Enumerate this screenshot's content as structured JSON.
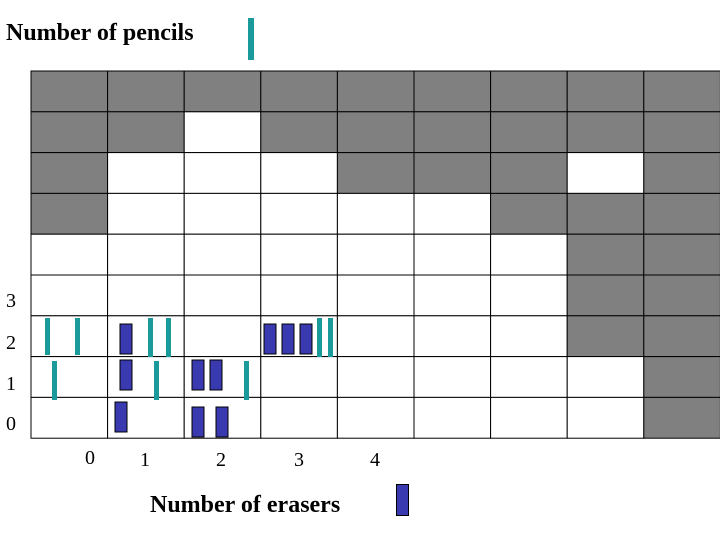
{
  "title": "Number of pencils",
  "x_axis_label": "Number of erasers",
  "y_ticks": [
    "3",
    "2",
    "1",
    "0"
  ],
  "x_ticks": [
    "0",
    "1",
    "2",
    "3",
    "4"
  ],
  "colors": {
    "shaded_cell": "#808080",
    "empty_cell": "#ffffff",
    "grid_line": "#000000",
    "pencil": "#1a9a9a",
    "eraser": "#3a3ab0"
  },
  "grid": {
    "rows": 9,
    "cols": 9,
    "shaded": [
      [
        1,
        1,
        1,
        1,
        1,
        1,
        1,
        1,
        1
      ],
      [
        1,
        1,
        0,
        1,
        1,
        1,
        1,
        1,
        1
      ],
      [
        1,
        0,
        0,
        0,
        1,
        1,
        1,
        0,
        1
      ],
      [
        1,
        0,
        0,
        0,
        0,
        0,
        1,
        1,
        1
      ],
      [
        0,
        0,
        0,
        0,
        0,
        0,
        0,
        1,
        1
      ],
      [
        0,
        0,
        0,
        0,
        0,
        0,
        0,
        1,
        1
      ],
      [
        0,
        0,
        0,
        0,
        0,
        0,
        0,
        1,
        1
      ],
      [
        0,
        0,
        0,
        0,
        0,
        0,
        0,
        0,
        1
      ],
      [
        0,
        0,
        0,
        0,
        0,
        0,
        0,
        0,
        1
      ]
    ]
  },
  "icons": {
    "pencil": "pencil-icon",
    "eraser": "eraser-icon"
  }
}
